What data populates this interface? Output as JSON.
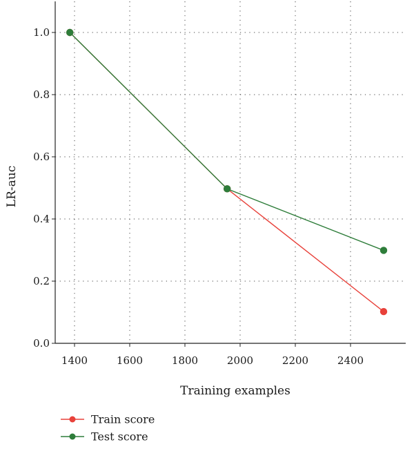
{
  "chart_data": {
    "type": "line",
    "title": "",
    "xlabel": "Training examples",
    "ylabel": "LR-auc",
    "xlim": [
      1330,
      2600
    ],
    "ylim": [
      0.0,
      1.1
    ],
    "xticks": [
      1400,
      1600,
      1800,
      2000,
      2200,
      2400
    ],
    "xtick_labels": [
      "1400",
      "1600",
      "1800",
      "2000",
      "2200",
      "2400"
    ],
    "yticks": [
      0.0,
      0.2,
      0.4,
      0.6,
      0.8,
      1.0
    ],
    "ytick_labels": [
      "0.0",
      "0.2",
      "0.4",
      "0.6",
      "0.8",
      "1.0"
    ],
    "grid": true,
    "grid_style": "dotted",
    "legend_position": "bottom-left, below plot",
    "series": [
      {
        "name": "Train score",
        "color": "#e8413a",
        "x": [
          1383,
          1953,
          2520
        ],
        "y": [
          1.0,
          0.497,
          0.102
        ]
      },
      {
        "name": "Test score",
        "color": "#2e7d3a",
        "x": [
          1383,
          1953,
          2520
        ],
        "y": [
          1.0,
          0.497,
          0.299
        ]
      }
    ]
  }
}
